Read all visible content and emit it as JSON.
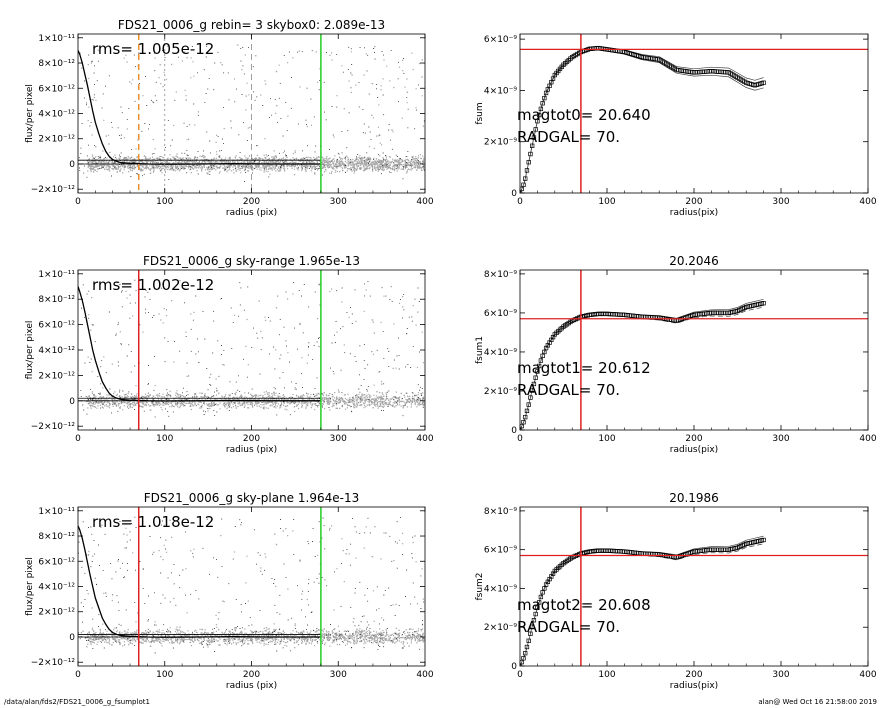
{
  "footer": {
    "left": "/data/alan/fds2/FDS21_0006_g_fsumplot1",
    "right": "alan@  Wed Oct 16 21:58:00 2019"
  },
  "chart_data": [
    {
      "id": "p1",
      "type": "scatter",
      "title": "FDS21_0006_g rebin= 3   skybox0:  2.089e-13",
      "xlabel": "radius (pix)",
      "ylabel": "flux/per pixel",
      "xlim": [
        0,
        400
      ],
      "ylim": [
        -2.3e-12,
        1.03e-11
      ],
      "xticks": [
        0,
        100,
        200,
        300,
        400
      ],
      "xtick_labels": [
        "0",
        "100",
        "200",
        "300",
        "400"
      ],
      "yticks": [
        -2e-12,
        0,
        2e-12,
        4e-12,
        6e-12,
        8e-12,
        1e-11
      ],
      "ytick_labels": [
        "−2×10⁻¹²",
        "0",
        "2×10⁻¹²",
        "4×10⁻¹²",
        "6×10⁻¹²",
        "8×10⁻¹²",
        "1×10⁻¹¹"
      ],
      "annotations": [
        "rms= 1.005e-12"
      ],
      "vlines": [
        {
          "x": 70,
          "color": "#e8902a",
          "style": "dashed"
        },
        {
          "x": 280,
          "color": "#22cc22",
          "style": "solid"
        },
        {
          "x": 100,
          "color": "#888888",
          "style": "dotted"
        },
        {
          "x": 200,
          "color": "#888888",
          "style": "dashed"
        }
      ],
      "hlines": [
        3e-13,
        0
      ],
      "profile": {
        "x": [
          0,
          2,
          5,
          8,
          11,
          14,
          17,
          20,
          24,
          28,
          32,
          36,
          40,
          45,
          50,
          60,
          80,
          100,
          140,
          180,
          220,
          280
        ],
        "y": [
          9e-12,
          8.7e-12,
          8e-12,
          7.1e-12,
          6.2e-12,
          5.2e-12,
          4.2e-12,
          3.3e-12,
          2.4e-12,
          1.6e-12,
          1e-12,
          6e-13,
          3.5e-13,
          2e-13,
          1e-13,
          5e-14,
          0.0,
          -2e-14,
          0.0,
          2e-14,
          0.0,
          0.0
        ]
      }
    },
    {
      "id": "p2",
      "type": "line",
      "title": "",
      "xlabel": "radius(pix)",
      "ylabel": "fsum",
      "xlim": [
        0,
        400
      ],
      "ylim": [
        0,
        6.2e-09
      ],
      "xticks": [
        0,
        100,
        200,
        300,
        400
      ],
      "xtick_labels": [
        "0",
        "100",
        "200",
        "300",
        "400"
      ],
      "yticks": [
        0,
        2e-09,
        4e-09,
        6e-09
      ],
      "ytick_labels": [
        "0",
        "2×10⁻⁹",
        "4×10⁻⁹",
        "6×10⁻⁹"
      ],
      "annotations": [
        "magtot0=  20.640",
        "RADGAL=     70."
      ],
      "vlines": [
        {
          "x": 70,
          "color": "#e02020"
        }
      ],
      "hlines_red": [
        5.6e-09
      ],
      "curve": {
        "x": [
          0,
          5,
          10,
          15,
          20,
          25,
          30,
          40,
          50,
          60,
          70,
          80,
          90,
          100,
          120,
          140,
          160,
          170,
          180,
          200,
          220,
          240,
          250,
          260,
          270,
          280
        ],
        "y": [
          0,
          4e-10,
          1.2e-09,
          2e-09,
          2.8e-09,
          3.4e-09,
          3.9e-09,
          4.6e-09,
          5e-09,
          5.3e-09,
          5.5e-09,
          5.62e-09,
          5.65e-09,
          5.6e-09,
          5.5e-09,
          5.3e-09,
          5.2e-09,
          5e-09,
          4.8e-09,
          4.7e-09,
          4.75e-09,
          4.7e-09,
          4.5e-09,
          4.3e-09,
          4.2e-09,
          4.3e-09
        ]
      },
      "band": 2e-10
    },
    {
      "id": "p3",
      "type": "scatter",
      "title": "FDS21_0006_g sky-range  1.965e-13",
      "xlabel": "radius (pix)",
      "ylabel": "flux/per pixel",
      "xlim": [
        0,
        400
      ],
      "ylim": [
        -2.3e-12,
        1.03e-11
      ],
      "xticks": [
        0,
        100,
        200,
        300,
        400
      ],
      "xtick_labels": [
        "0",
        "100",
        "200",
        "300",
        "400"
      ],
      "yticks": [
        -2e-12,
        0,
        2e-12,
        4e-12,
        6e-12,
        8e-12,
        1e-11
      ],
      "ytick_labels": [
        "−2×10⁻¹²",
        "0",
        "2×10⁻¹²",
        "4×10⁻¹²",
        "6×10⁻¹²",
        "8×10⁻¹²",
        "1×10⁻¹¹"
      ],
      "annotations": [
        "rms= 1.002e-12"
      ],
      "vlines": [
        {
          "x": 70,
          "color": "#e02020",
          "style": "solid"
        },
        {
          "x": 280,
          "color": "#22cc22",
          "style": "solid"
        }
      ],
      "hlines": [
        2e-13,
        0
      ],
      "profile": {
        "x": [
          0,
          2,
          5,
          8,
          11,
          14,
          17,
          20,
          24,
          28,
          32,
          36,
          40,
          45,
          50,
          60,
          80,
          100,
          140,
          180,
          220,
          280
        ],
        "y": [
          9e-12,
          8.6e-12,
          7.9e-12,
          7e-12,
          6e-12,
          5e-12,
          4e-12,
          3.2e-12,
          2.3e-12,
          1.5e-12,
          1e-12,
          6e-13,
          3.5e-13,
          2e-13,
          1e-13,
          5e-14,
          0.0,
          -2e-14,
          0.0,
          2e-14,
          0.0,
          0.0
        ]
      }
    },
    {
      "id": "p4",
      "type": "line",
      "title": "20.2046",
      "xlabel": "radius(pix)",
      "ylabel": "fsum1",
      "xlim": [
        0,
        400
      ],
      "ylim": [
        0,
        8.2e-09
      ],
      "xticks": [
        0,
        100,
        200,
        300,
        400
      ],
      "xtick_labels": [
        "0",
        "100",
        "200",
        "300",
        "400"
      ],
      "yticks": [
        0,
        2e-09,
        4e-09,
        6e-09,
        8e-09
      ],
      "ytick_labels": [
        "0",
        "2×10⁻⁹",
        "4×10⁻⁹",
        "6×10⁻⁹",
        "8×10⁻⁹"
      ],
      "annotations": [
        "magtot1=  20.612",
        "RADGAL=     70."
      ],
      "vlines": [
        {
          "x": 70,
          "color": "#e02020"
        }
      ],
      "hlines_red": [
        5.7e-09
      ],
      "curve": {
        "x": [
          0,
          5,
          10,
          15,
          20,
          25,
          30,
          40,
          50,
          60,
          70,
          80,
          90,
          100,
          120,
          140,
          160,
          180,
          200,
          220,
          240,
          250,
          260,
          270,
          280
        ],
        "y": [
          0,
          5e-10,
          1.3e-09,
          2.2e-09,
          3e-09,
          3.7e-09,
          4.2e-09,
          4.9e-09,
          5.3e-09,
          5.6e-09,
          5.8e-09,
          5.9e-09,
          5.95e-09,
          5.95e-09,
          5.9e-09,
          5.8e-09,
          5.75e-09,
          5.6e-09,
          5.9e-09,
          6e-09,
          6e-09,
          6.1e-09,
          6.3e-09,
          6.4e-09,
          6.5e-09
        ]
      },
      "band": 2e-10
    },
    {
      "id": "p5",
      "type": "scatter",
      "title": "FDS21_0006_g sky-plane  1.964e-13",
      "xlabel": "radius (pix)",
      "ylabel": "flux/per pixel",
      "xlim": [
        0,
        400
      ],
      "ylim": [
        -2.3e-12,
        1.03e-11
      ],
      "xticks": [
        0,
        100,
        200,
        300,
        400
      ],
      "xtick_labels": [
        "0",
        "100",
        "200",
        "300",
        "400"
      ],
      "yticks": [
        -2e-12,
        0,
        2e-12,
        4e-12,
        6e-12,
        8e-12,
        1e-11
      ],
      "ytick_labels": [
        "−2×10⁻¹²",
        "0",
        "2×10⁻¹²",
        "4×10⁻¹²",
        "6×10⁻¹²",
        "8×10⁻¹²",
        "1×10⁻¹¹"
      ],
      "annotations": [
        "rms= 1.018e-12"
      ],
      "vlines": [
        {
          "x": 70,
          "color": "#e02020",
          "style": "solid"
        },
        {
          "x": 280,
          "color": "#22cc22",
          "style": "solid"
        }
      ],
      "hlines": [
        2e-13,
        0
      ],
      "profile": {
        "x": [
          0,
          2,
          5,
          8,
          11,
          14,
          17,
          20,
          24,
          28,
          32,
          36,
          40,
          45,
          50,
          60,
          80,
          100,
          140,
          180,
          220,
          280
        ],
        "y": [
          8.8e-12,
          8.5e-12,
          7.8e-12,
          6.9e-12,
          5.9e-12,
          4.9e-12,
          4e-12,
          3.1e-12,
          2.3e-12,
          1.5e-12,
          1e-12,
          6e-13,
          3.5e-13,
          2e-13,
          1e-13,
          5e-14,
          0.0,
          -2e-14,
          0.0,
          2e-14,
          0.0,
          0.0
        ]
      }
    },
    {
      "id": "p6",
      "type": "line",
      "title": "20.1986",
      "xlabel": "radius(pix)",
      "ylabel": "fsum2",
      "xlim": [
        0,
        400
      ],
      "ylim": [
        0,
        8.2e-09
      ],
      "xticks": [
        0,
        100,
        200,
        300,
        400
      ],
      "xtick_labels": [
        "0",
        "100",
        "200",
        "300",
        "400"
      ],
      "yticks": [
        0,
        2e-09,
        4e-09,
        6e-09,
        8e-09
      ],
      "ytick_labels": [
        "0",
        "2×10⁻⁹",
        "4×10⁻⁹",
        "6×10⁻⁹",
        "8×10⁻⁹"
      ],
      "annotations": [
        "magtot2=  20.608",
        "RADGAL=     70."
      ],
      "vlines": [
        {
          "x": 70,
          "color": "#e02020"
        }
      ],
      "hlines_red": [
        5.7e-09
      ],
      "curve": {
        "x": [
          0,
          5,
          10,
          15,
          20,
          25,
          30,
          40,
          50,
          60,
          70,
          80,
          90,
          100,
          120,
          140,
          160,
          180,
          200,
          220,
          240,
          250,
          260,
          270,
          280
        ],
        "y": [
          0,
          5e-10,
          1.3e-09,
          2.2e-09,
          3e-09,
          3.7e-09,
          4.2e-09,
          4.9e-09,
          5.3e-09,
          5.6e-09,
          5.8e-09,
          5.9e-09,
          5.95e-09,
          5.95e-09,
          5.9e-09,
          5.8e-09,
          5.75e-09,
          5.6e-09,
          5.9e-09,
          6e-09,
          6e-09,
          6.1e-09,
          6.3e-09,
          6.4e-09,
          6.5e-09
        ]
      },
      "band": 2e-10
    }
  ]
}
